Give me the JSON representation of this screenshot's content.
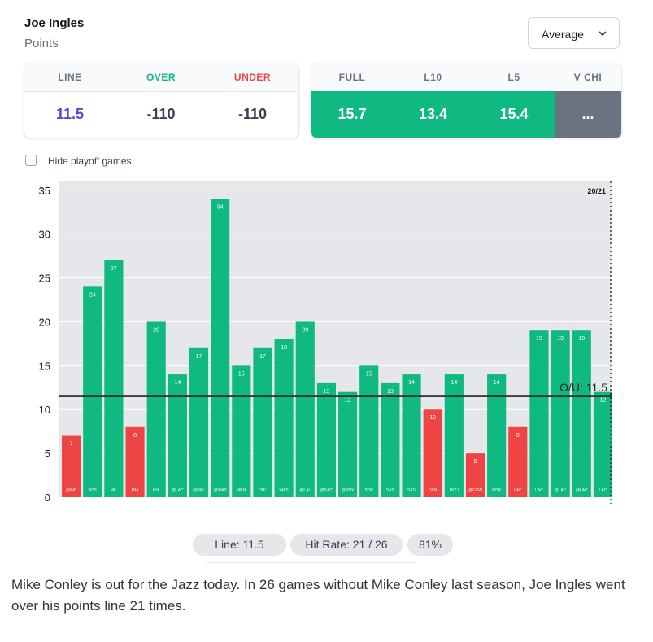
{
  "header": {
    "player": "Joe Ingles",
    "stat": "Points"
  },
  "dropdown": {
    "selected": "Average"
  },
  "line_card": {
    "headers": [
      "LINE",
      "OVER",
      "UNDER"
    ],
    "values": [
      "11.5",
      "-110",
      "-110"
    ],
    "colors": {
      "line": "#4f46e5",
      "over": "#10b981",
      "under": "#ef4444"
    }
  },
  "avg_card": {
    "headers": [
      "FULL",
      "L10",
      "L5",
      "V CHI"
    ],
    "values": [
      "15.7",
      "13.4",
      "15.4",
      "..."
    ]
  },
  "filter": {
    "hide_playoff_label": "Hide playoff games",
    "checked": false
  },
  "chart_data": {
    "type": "bar",
    "categories": [
      "@IND",
      "BOS",
      "MIL",
      "MIA",
      "PHI",
      "@LAC",
      "@ORL",
      "@WAS",
      "MEM",
      "ORL",
      "WAS",
      "@LAL",
      "@SAC",
      "@PHX",
      "TOR",
      "SAS",
      "SAS",
      "DEN",
      "HOU",
      "@GSW",
      "POR",
      "LAC",
      "LAC",
      "@LAC",
      "@LAC",
      "LAC"
    ],
    "values": [
      7,
      24,
      27,
      8,
      20,
      14,
      17,
      34,
      15,
      17,
      18,
      20,
      13,
      12,
      15,
      13,
      14,
      10,
      14,
      5,
      14,
      8,
      19,
      19,
      19,
      12
    ],
    "ylim": [
      0,
      36
    ],
    "yticks": [
      0,
      5,
      10,
      15,
      20,
      25,
      30,
      35
    ],
    "line_value": 11.5,
    "line_label": "O/U: 11.5",
    "corner_label": "20/21",
    "colors": {
      "over": "#10b981",
      "under": "#ef4444",
      "background": "#e5e7eb",
      "line": "#222222"
    }
  },
  "summary": {
    "line": "Line: 11.5",
    "hit_rate": "Hit Rate: 21 / 26",
    "pct": "81%"
  },
  "caption": "Mike Conley is out for the Jazz today. In 26 games without Mike Conley last season, Joe Ingles went over his points line 21 times."
}
